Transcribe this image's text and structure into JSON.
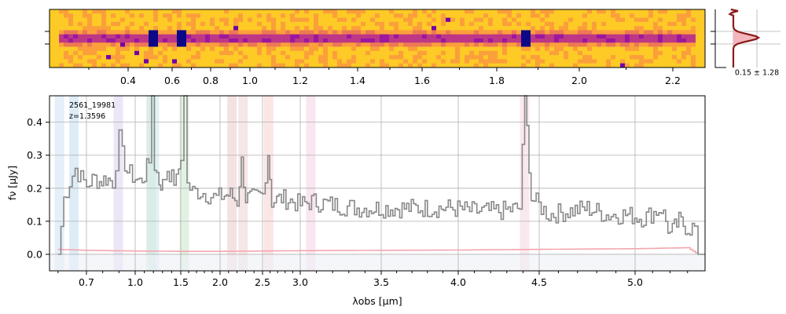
{
  "figure": {
    "object_id": "2561_19981",
    "redshift_text": "z=1.3596",
    "profile_label": "0.15 ± 1.28"
  },
  "chart_data": [
    {
      "type": "heatmap",
      "name": "2D spectrum",
      "top_axis_ticks": [
        "0.4",
        "0.6",
        "0.8",
        "1.0",
        "1.2",
        "1.4",
        "1.6",
        "1.8",
        "2.0",
        "2.2"
      ],
      "colormap": "plasma",
      "trace_bright_pixels_um": [
        0.51,
        0.655,
        1.87
      ]
    },
    {
      "type": "line",
      "name": "cross-dispersion profile",
      "label": "0.15 ± 1.28",
      "colors": {
        "profile": "#8b1a1a",
        "fill": "#f4b6bd"
      }
    },
    {
      "type": "line",
      "xlabel": "λobs [μm]",
      "ylabel": "fν [μJy]",
      "xlim": [
        0.57,
        5.4
      ],
      "ylim": [
        -0.05,
        0.48
      ],
      "x_ticks": [
        "0.7",
        "1.0",
        "1.5",
        "2.0",
        "2.5",
        "3.0",
        "3.5",
        "4.0",
        "4.5",
        "5.0"
      ],
      "y_ticks": [
        "0.0",
        "0.1",
        "0.2",
        "0.3",
        "0.4"
      ],
      "grid": true,
      "series": [
        {
          "role": "flux",
          "color": "#888888",
          "points": [
            [
              0.6,
              0.0
            ],
            [
              0.62,
              0.17
            ],
            [
              0.64,
              0.22
            ],
            [
              0.66,
              0.26
            ],
            [
              0.68,
              0.23
            ],
            [
              0.7,
              0.21
            ],
            [
              0.72,
              0.22
            ],
            [
              0.75,
              0.23
            ],
            [
              0.78,
              0.22
            ],
            [
              0.82,
              0.23
            ],
            [
              0.86,
              0.22
            ],
            [
              0.88,
              0.28
            ],
            [
              0.9,
              0.35
            ],
            [
              0.92,
              0.3
            ],
            [
              0.95,
              0.25
            ],
            [
              1.0,
              0.23
            ],
            [
              1.05,
              0.22
            ],
            [
              1.1,
              0.24
            ],
            [
              1.15,
              0.28
            ],
            [
              1.18,
              0.48
            ],
            [
              1.21,
              0.27
            ],
            [
              1.26,
              0.22
            ],
            [
              1.3,
              0.21
            ],
            [
              1.35,
              0.26
            ],
            [
              1.4,
              0.23
            ],
            [
              1.45,
              0.22
            ],
            [
              1.5,
              0.3
            ],
            [
              1.54,
              0.48
            ],
            [
              1.58,
              0.21
            ],
            [
              1.65,
              0.19
            ],
            [
              1.75,
              0.19
            ],
            [
              1.85,
              0.18
            ],
            [
              1.95,
              0.17
            ],
            [
              2.05,
              0.18
            ],
            [
              2.12,
              0.18
            ],
            [
              2.2,
              0.16
            ],
            [
              2.25,
              0.28
            ],
            [
              2.3,
              0.17
            ],
            [
              2.4,
              0.17
            ],
            [
              2.5,
              0.18
            ],
            [
              2.57,
              0.31
            ],
            [
              2.62,
              0.16
            ],
            [
              2.75,
              0.17
            ],
            [
              2.9,
              0.16
            ],
            [
              3.0,
              0.15
            ],
            [
              3.07,
              0.16
            ],
            [
              3.2,
              0.15
            ],
            [
              3.35,
              0.14
            ],
            [
              3.5,
              0.14
            ],
            [
              3.65,
              0.14
            ],
            [
              3.8,
              0.14
            ],
            [
              3.95,
              0.14
            ],
            [
              4.1,
              0.13
            ],
            [
              4.25,
              0.13
            ],
            [
              4.38,
              0.14
            ],
            [
              4.41,
              0.48
            ],
            [
              4.45,
              0.17
            ],
            [
              4.55,
              0.12
            ],
            [
              4.65,
              0.13
            ],
            [
              4.75,
              0.14
            ],
            [
              4.85,
              0.12
            ],
            [
              4.95,
              0.12
            ],
            [
              5.05,
              0.11
            ],
            [
              5.15,
              0.14
            ],
            [
              5.2,
              0.06
            ],
            [
              5.25,
              0.1
            ],
            [
              5.3,
              0.08
            ],
            [
              5.34,
              0.08
            ],
            [
              5.36,
              0.0
            ],
            [
              5.4,
              0.0
            ]
          ]
        },
        {
          "role": "uncertainty",
          "color": "#f4a6ae",
          "points": [
            [
              0.6,
              0.015
            ],
            [
              0.7,
              0.012
            ],
            [
              1.0,
              0.01
            ],
            [
              1.5,
              0.009
            ],
            [
              2.0,
              0.009
            ],
            [
              2.5,
              0.01
            ],
            [
              3.0,
              0.011
            ],
            [
              3.5,
              0.012
            ],
            [
              4.0,
              0.013
            ],
            [
              4.5,
              0.015
            ],
            [
              5.0,
              0.017
            ],
            [
              5.3,
              0.02
            ],
            [
              5.36,
              0.0
            ]
          ]
        }
      ],
      "line_bands_um": [
        {
          "center": 0.605,
          "color": "#d8e8f8"
        },
        {
          "center": 0.656,
          "color": "#cfe4f4"
        },
        {
          "center": 0.896,
          "color": "#e4dcf2"
        },
        {
          "center": 1.175,
          "color": "#cfe6d8"
        },
        {
          "center": 1.21,
          "color": "#d6ecec"
        },
        {
          "center": 1.545,
          "color": "#d6ecd6"
        },
        {
          "center": 2.14,
          "color": "#f0d6d6"
        },
        {
          "center": 2.27,
          "color": "#f2dcdc"
        },
        {
          "center": 2.58,
          "color": "#fadada"
        },
        {
          "center": 3.065,
          "color": "#f6dbea"
        },
        {
          "center": 4.41,
          "color": "#f8e0e4"
        }
      ]
    }
  ]
}
